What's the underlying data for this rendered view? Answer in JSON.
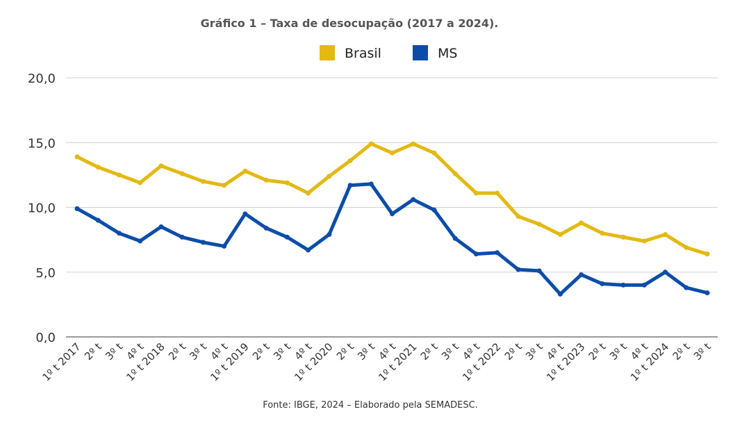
{
  "chart_data": {
    "type": "line",
    "title": "Gráfico 1 – Taxa de desocupação (2017 a 2024).",
    "source": "Fonte: IBGE, 2024 – Elaborado pela SEMADESC.",
    "xlabel": "",
    "ylabel": "",
    "ylim": [
      0,
      20
    ],
    "yticks": [
      "0,0",
      "5,0",
      "10,0",
      "15,0",
      "20,0"
    ],
    "grid": true,
    "legend_position": "top-center",
    "categories": [
      "1º t 2017",
      "2º t",
      "3º t",
      "4º t",
      "1º t 2018",
      "2º t",
      "3º t",
      "4º t",
      "1º t 2019",
      "2º t",
      "3º t",
      "4º t",
      "1º t 2020",
      "2º t",
      "3º t",
      "4º t",
      "1º t 2021",
      "2º t",
      "3º t",
      "4º t",
      "1º t 2022",
      "2º t",
      "3º t",
      "4º t",
      "1º t 2023",
      "2º t",
      "3º t",
      "4º t",
      "1º t 2024",
      "2º t",
      "3º t"
    ],
    "series": [
      {
        "name": "Brasil",
        "color": "#E3B912",
        "values": [
          13.9,
          13.1,
          12.5,
          11.9,
          13.2,
          12.6,
          12.0,
          11.7,
          12.8,
          12.1,
          11.9,
          11.1,
          12.4,
          13.6,
          14.9,
          14.2,
          14.9,
          14.2,
          12.6,
          11.1,
          11.1,
          9.3,
          8.7,
          7.9,
          8.8,
          8.0,
          7.7,
          7.4,
          7.9,
          6.9,
          6.4
        ]
      },
      {
        "name": "MS",
        "color": "#0C4DA8",
        "values": [
          9.9,
          9.0,
          8.0,
          7.4,
          8.5,
          7.7,
          7.3,
          7.0,
          9.5,
          8.4,
          7.7,
          6.7,
          7.9,
          11.7,
          11.8,
          9.5,
          10.6,
          9.8,
          7.6,
          6.4,
          6.5,
          5.2,
          5.1,
          3.3,
          4.8,
          4.1,
          4.0,
          4.0,
          5.0,
          3.8,
          3.4
        ]
      }
    ]
  }
}
